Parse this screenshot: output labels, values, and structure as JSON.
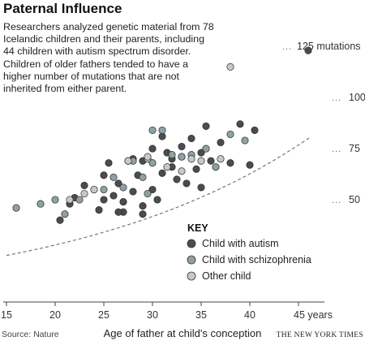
{
  "header": {
    "title": "Paternal Influence",
    "intro_lines": [
      "Researchers analyzed genetic material from 78",
      "Icelandic children and their parents, including",
      "44 children with autism spectrum disorder.",
      "Children of older fathers tended to have a",
      "higher number of mutations that are not",
      "inherited from either parent."
    ]
  },
  "footer": {
    "source": "Source: Nature",
    "credit": "THE NEW YORK TIMES"
  },
  "colors": {
    "autism": "#4a4d4c",
    "schizophrenia": "#8fa0a6",
    "other": "#c9c9c3",
    "trend": "#777777",
    "axis": "#444444"
  },
  "chart_data": {
    "type": "scatter",
    "title": "Paternal Influence",
    "xlabel": "Age of father at child's conception",
    "ylabel": "",
    "xlim": [
      15,
      47
    ],
    "ylim": [
      0,
      131
    ],
    "x_ticks": [
      {
        "value": 15,
        "label": "15"
      },
      {
        "value": 20,
        "label": "20"
      },
      {
        "value": 25,
        "label": "25"
      },
      {
        "value": 30,
        "label": "30"
      },
      {
        "value": 35,
        "label": "35"
      },
      {
        "value": 40,
        "label": "40"
      },
      {
        "value": 45,
        "label": "45 years"
      }
    ],
    "y_ticks": [
      {
        "value": 25,
        "label": "25"
      },
      {
        "value": 50,
        "label": "50"
      },
      {
        "value": 75,
        "label": "75"
      },
      {
        "value": 100,
        "label": "100"
      },
      {
        "value": 125,
        "label": "125 mutations"
      }
    ],
    "grid": false,
    "trend_line": {
      "type": "exponential",
      "a": 18.6,
      "b": 0.0405
    },
    "legend": {
      "title": "KEY",
      "placement": "bottom-right",
      "entries": [
        {
          "key": "autism",
          "label": "Child with autism"
        },
        {
          "key": "schizophrenia",
          "label": "Child with schizophrenia"
        },
        {
          "key": "other",
          "label": "Other child"
        }
      ]
    },
    "series": [
      {
        "key": "autism",
        "name": "Child with autism",
        "points": [
          [
            20.5,
            40
          ],
          [
            21.5,
            48
          ],
          [
            22,
            51
          ],
          [
            23,
            57
          ],
          [
            24.5,
            45
          ],
          [
            25,
            62
          ],
          [
            25,
            50
          ],
          [
            25.5,
            68
          ],
          [
            26,
            52
          ],
          [
            26.5,
            58
          ],
          [
            27,
            49
          ],
          [
            27,
            44
          ],
          [
            27.5,
            69
          ],
          [
            28,
            54
          ],
          [
            28,
            70
          ],
          [
            28.5,
            62
          ],
          [
            29,
            47
          ],
          [
            29,
            69
          ],
          [
            30,
            55
          ],
          [
            30,
            75
          ],
          [
            30.5,
            50
          ],
          [
            31,
            63
          ],
          [
            31,
            81
          ],
          [
            31.5,
            73
          ],
          [
            32,
            70
          ],
          [
            32,
            66
          ],
          [
            32.5,
            60
          ],
          [
            33,
            76
          ],
          [
            33,
            71
          ],
          [
            33.5,
            58
          ],
          [
            34,
            80
          ],
          [
            34.5,
            65
          ],
          [
            35,
            73
          ],
          [
            35,
            56
          ],
          [
            35.5,
            86
          ],
          [
            36,
            69
          ],
          [
            37,
            78
          ],
          [
            38,
            68
          ],
          [
            39,
            87
          ],
          [
            40,
            67
          ],
          [
            40.5,
            84
          ],
          [
            26.5,
            44
          ],
          [
            29,
            43
          ],
          [
            46,
            123
          ]
        ]
      },
      {
        "key": "schizophrenia",
        "name": "Child with schizophrenia",
        "points": [
          [
            16,
            46
          ],
          [
            18.5,
            48
          ],
          [
            20,
            50
          ],
          [
            21,
            43
          ],
          [
            24,
            55
          ],
          [
            25,
            55
          ],
          [
            26,
            61
          ],
          [
            27,
            56
          ],
          [
            28,
            69
          ],
          [
            29,
            61
          ],
          [
            29.5,
            53
          ],
          [
            30,
            84
          ],
          [
            31,
            84
          ],
          [
            32,
            72
          ],
          [
            33,
            71
          ],
          [
            34,
            72
          ],
          [
            35.5,
            75
          ],
          [
            36.5,
            66
          ],
          [
            38,
            82
          ],
          [
            39.5,
            79
          ],
          [
            30,
            68
          ],
          [
            22.5,
            50
          ]
        ]
      },
      {
        "key": "other",
        "name": "Other child",
        "points": [
          [
            21.5,
            50
          ],
          [
            24,
            55
          ],
          [
            27.5,
            69
          ],
          [
            29.5,
            70
          ],
          [
            31.5,
            66
          ],
          [
            33,
            64
          ],
          [
            34,
            70
          ],
          [
            35,
            69
          ],
          [
            37,
            70
          ],
          [
            38,
            115
          ],
          [
            23,
            53
          ],
          [
            29.5,
            71
          ]
        ]
      }
    ]
  }
}
